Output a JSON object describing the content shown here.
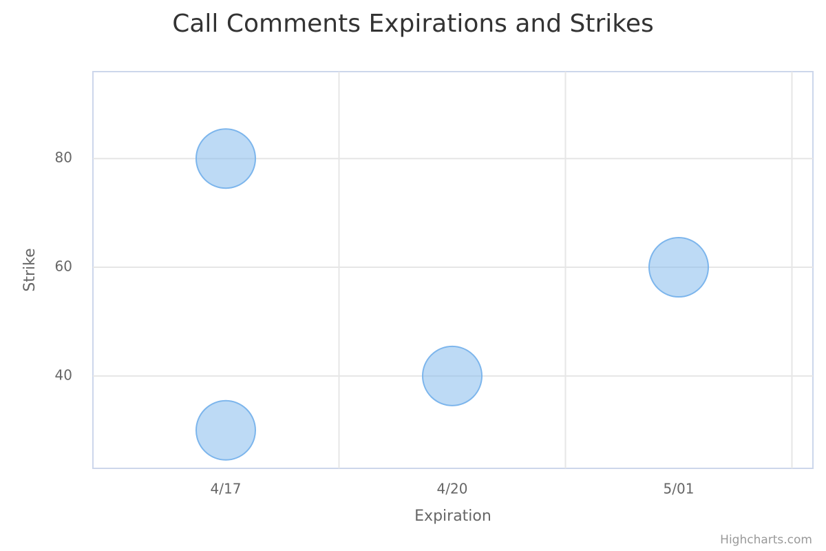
{
  "chart_data": {
    "type": "bubble",
    "title": "Call Comments Expirations and Strikes",
    "x_label": "Expiration",
    "y_label": "Strike",
    "categories": [
      "4/17",
      "4/20",
      "5/01"
    ],
    "series": [
      {
        "color": "#7cb5ec",
        "values": [
          80,
          40,
          60
        ]
      },
      {
        "color": "#7cb5ec",
        "values": [
          30,
          null,
          null
        ]
      }
    ],
    "ylim": [
      23,
      96
    ],
    "yticks": [
      40,
      60,
      80
    ],
    "grid": true,
    "credits": "Highcharts.com"
  }
}
